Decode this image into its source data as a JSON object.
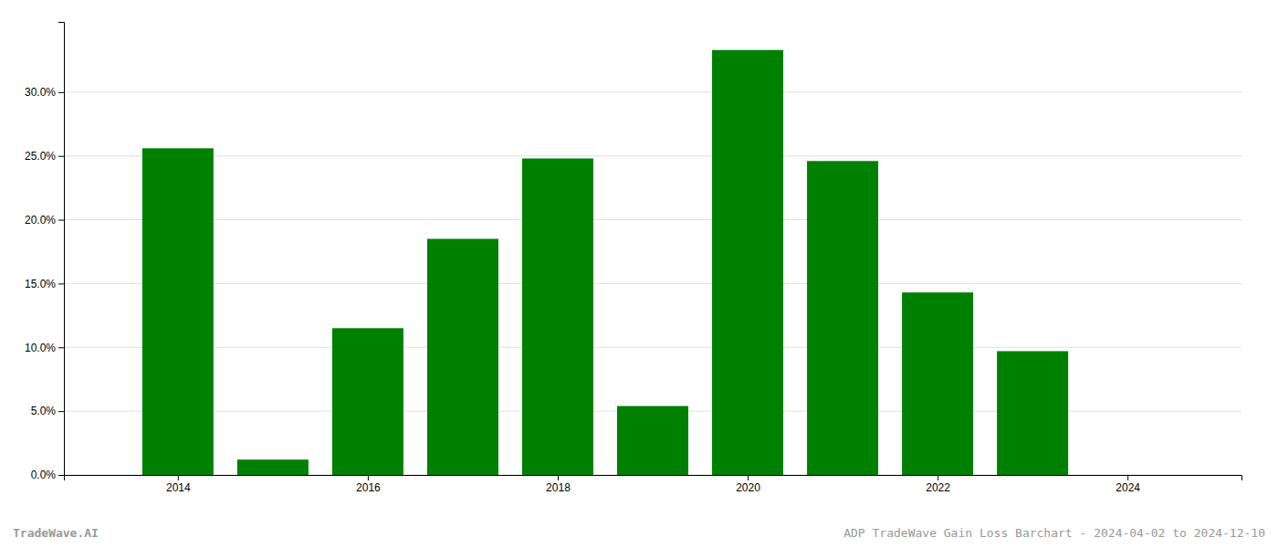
{
  "chart_data": {
    "type": "bar",
    "x": [
      2014,
      2015,
      2016,
      2017,
      2018,
      2019,
      2020,
      2021,
      2022,
      2023
    ],
    "values": [
      0.256,
      0.012,
      0.115,
      0.185,
      0.248,
      0.054,
      0.333,
      0.246,
      0.143,
      0.097
    ],
    "color": "#008000",
    "xlim": [
      2012.8,
      2025.2
    ],
    "xticks": [
      2014,
      2016,
      2018,
      2020,
      2022,
      2024
    ],
    "ylim": [
      0,
      0.355
    ],
    "yticks": [
      {
        "value": 0.0,
        "label": "0.0%"
      },
      {
        "value": 0.05,
        "label": "5.0%"
      },
      {
        "value": 0.1,
        "label": "10.0%"
      },
      {
        "value": 0.15,
        "label": "15.0%"
      },
      {
        "value": 0.2,
        "label": "20.0%"
      },
      {
        "value": 0.25,
        "label": "25.0%"
      },
      {
        "value": 0.3,
        "label": "30.0%"
      }
    ],
    "grid": true,
    "annotations": [
      "TradeWave.AI",
      "ADP TradeWave Gain Loss Barchart - 2024-04-02 to 2024-12-10"
    ]
  }
}
